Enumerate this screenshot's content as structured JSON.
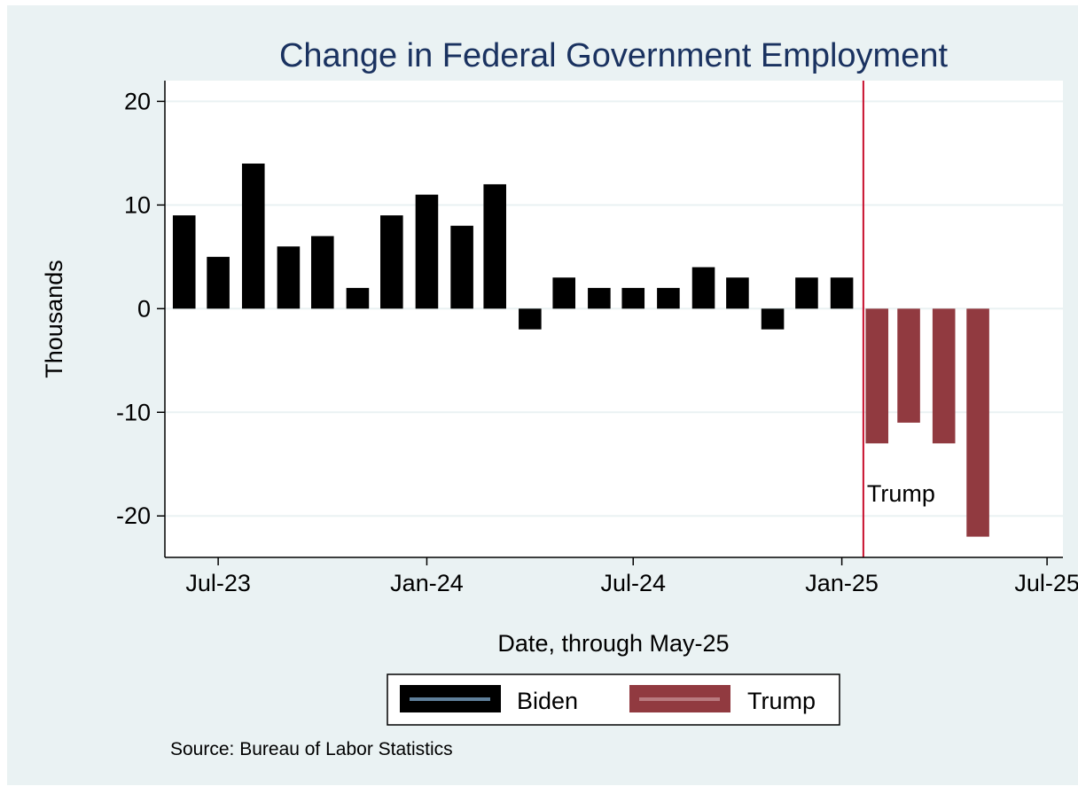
{
  "chart_data": {
    "type": "bar",
    "title": "Change in Federal Government Employment",
    "xlabel": "Date, through May-25",
    "ylabel": "Thousands",
    "ylim": [
      -24,
      22
    ],
    "xlim": [
      "2023-05-15",
      "2025-07-15"
    ],
    "yticks": [
      20,
      10,
      0,
      -10,
      -20
    ],
    "ytick_labels": [
      "20",
      "10",
      "0",
      "-10",
      "-20"
    ],
    "xticks": [
      "2023-07-01",
      "2024-01-01",
      "2024-07-01",
      "2025-01-01",
      "2025-07-01"
    ],
    "xtick_labels": [
      "Jul-23",
      "Jan-24",
      "Jul-24",
      "Jan-25",
      "Jul-25"
    ],
    "grid": true,
    "legend_position": "bottom",
    "series": [
      {
        "name": "Biden",
        "color": "#000000",
        "dates": [
          "2023-06-01",
          "2023-07-01",
          "2023-08-01",
          "2023-09-01",
          "2023-10-01",
          "2023-11-01",
          "2023-12-01",
          "2024-01-01",
          "2024-02-01",
          "2024-03-01",
          "2024-04-01",
          "2024-05-01",
          "2024-06-01",
          "2024-07-01",
          "2024-08-01",
          "2024-09-01",
          "2024-10-01",
          "2024-11-01",
          "2024-12-01",
          "2025-01-01"
        ],
        "values": [
          9,
          5,
          14,
          6,
          7,
          2,
          9,
          11,
          8,
          12,
          -2,
          3,
          2,
          2,
          2,
          4,
          3,
          -2,
          3,
          3
        ]
      },
      {
        "name": "Trump",
        "color": "#913a40",
        "dates": [
          "2025-02-01",
          "2025-03-01",
          "2025-04-01",
          "2025-05-01"
        ],
        "values": [
          -13,
          -11,
          -13,
          -22
        ]
      }
    ],
    "vline": {
      "date": "2025-01-20",
      "label": "Trump",
      "color": "#c8102e"
    },
    "note": "Source: Bureau of Labor Statistics"
  },
  "colors": {
    "outer_background": "#eaf2f3",
    "plot_background": "#ffffff",
    "grid": "#eaf2f3",
    "title": "#1a3260"
  }
}
